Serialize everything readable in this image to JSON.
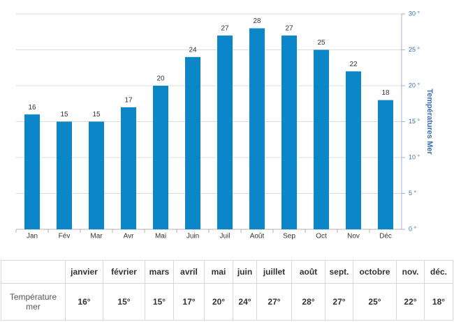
{
  "chart_data": {
    "type": "bar",
    "y_axis_title": "Températures Mer",
    "categories": [
      "Jan",
      "Fév",
      "Mar",
      "Avr",
      "Mai",
      "Juin",
      "Juil",
      "Août",
      "Sep",
      "Oct",
      "Nov",
      "Déc"
    ],
    "values": [
      16,
      15,
      15,
      17,
      20,
      24,
      27,
      28,
      27,
      25,
      22,
      18
    ],
    "color": "#0a86c9",
    "ylim": [
      0,
      30
    ],
    "yticks": [
      {
        "value": 0,
        "label": "0 °"
      },
      {
        "value": 5,
        "label": "5 °"
      },
      {
        "value": 10,
        "label": "10 °"
      },
      {
        "value": 15,
        "label": "15 °"
      },
      {
        "value": 20,
        "label": "20 °"
      },
      {
        "value": 25,
        "label": "25 °"
      },
      {
        "value": 30,
        "label": "30 °"
      }
    ],
    "grid": true,
    "y_axis_side": "right"
  },
  "table": {
    "header": [
      "janvier",
      "février",
      "mars",
      "avril",
      "mai",
      "juin",
      "juillet",
      "août",
      "sept.",
      "octobre",
      "nov.",
      "déc."
    ],
    "rows": [
      [
        "Température mer",
        "16°",
        "15°",
        "15°",
        "17°",
        "20°",
        "24°",
        "27°",
        "28°",
        "27°",
        "25°",
        "22°",
        "18°"
      ]
    ]
  }
}
